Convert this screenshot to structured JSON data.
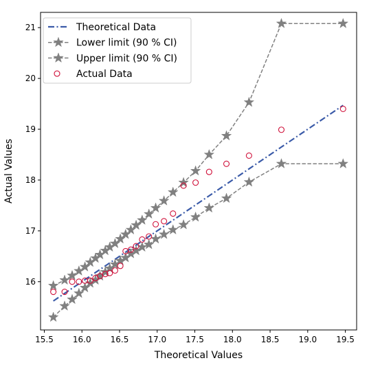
{
  "chart_data": {
    "type": "scatter",
    "xlabel": "Theoretical Values",
    "ylabel": "Actual Values",
    "xlim": [
      15.45,
      19.65
    ],
    "ylim": [
      15.05,
      21.3
    ],
    "xticks": [
      15.5,
      16.0,
      16.5,
      17.0,
      17.5,
      18.0,
      18.5,
      19.0,
      19.5
    ],
    "xtick_labels": [
      "15.5",
      "16.0",
      "16.5",
      "17.0",
      "17.5",
      "18.0",
      "18.5",
      "19.0",
      "19.5"
    ],
    "yticks": [
      16,
      17,
      18,
      19,
      20,
      21
    ],
    "ytick_labels": [
      "16",
      "17",
      "18",
      "19",
      "20",
      "21"
    ],
    "grid": false,
    "legend": "top-left",
    "x": [
      15.62,
      15.77,
      15.87,
      15.96,
      16.04,
      16.11,
      16.18,
      16.24,
      16.31,
      16.37,
      16.44,
      16.51,
      16.58,
      16.65,
      16.72,
      16.8,
      16.89,
      16.98,
      17.09,
      17.21,
      17.35,
      17.51,
      17.69,
      17.92,
      18.22,
      18.65,
      19.47
    ],
    "series": [
      {
        "name": "Theoretical Data",
        "style": "dashdot-line",
        "color": "#3a5aa8",
        "values": [
          15.62,
          15.77,
          15.87,
          15.96,
          16.04,
          16.11,
          16.18,
          16.24,
          16.31,
          16.37,
          16.44,
          16.51,
          16.58,
          16.65,
          16.72,
          16.8,
          16.89,
          16.98,
          17.09,
          17.21,
          17.35,
          17.51,
          17.69,
          17.92,
          18.22,
          18.65,
          19.47
        ]
      },
      {
        "name": "Lower limit (90 % CI)",
        "style": "dashed-star",
        "color": "#808080",
        "values": [
          15.3,
          15.52,
          15.65,
          15.77,
          15.88,
          15.97,
          16.03,
          16.11,
          16.19,
          16.26,
          16.34,
          16.41,
          16.47,
          16.55,
          16.61,
          16.68,
          16.73,
          16.84,
          16.93,
          17.02,
          17.12,
          17.27,
          17.45,
          17.64,
          17.96,
          18.32,
          18.32
        ]
      },
      {
        "name": "Upper limit (90 % CI)",
        "style": "dashed-star",
        "color": "#808080",
        "values": [
          15.92,
          16.03,
          16.12,
          16.21,
          16.29,
          16.38,
          16.46,
          16.53,
          16.61,
          16.68,
          16.75,
          16.84,
          16.93,
          17.02,
          17.11,
          17.21,
          17.33,
          17.45,
          17.59,
          17.76,
          17.95,
          18.18,
          18.5,
          18.87,
          19.53,
          21.08,
          21.08
        ]
      },
      {
        "name": "Actual Data",
        "style": "open-circle",
        "color": "#d0103a",
        "values": [
          15.8,
          15.8,
          16.0,
          16.0,
          16.02,
          16.02,
          16.07,
          16.11,
          16.15,
          16.17,
          16.22,
          16.31,
          16.6,
          16.63,
          16.7,
          16.83,
          16.89,
          17.13,
          17.19,
          17.34,
          17.89,
          17.95,
          18.16,
          18.32,
          18.48,
          18.99,
          19.4
        ]
      }
    ]
  }
}
